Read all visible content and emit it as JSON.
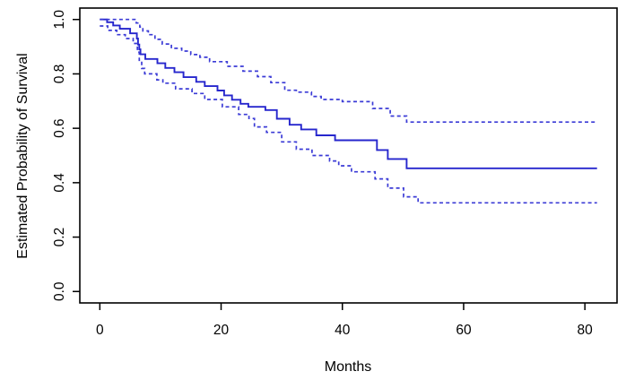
{
  "figure": {
    "background": "#ffffff",
    "axis_color": "#000000",
    "text_color": "#000000"
  },
  "chart_data": {
    "type": "line",
    "subtype": "kaplan-meier-step-function",
    "title": "",
    "xlabel": "Months",
    "ylabel": "Estimated Probability of Survival",
    "xlim": [
      -3.3,
      85.3
    ],
    "ylim": [
      -0.042,
      1.042
    ],
    "x_ticks": {
      "values": [
        0,
        20,
        40,
        60,
        80
      ],
      "labels": [
        "0",
        "20",
        "40",
        "60",
        "80"
      ]
    },
    "y_ticks": {
      "values": [
        0.0,
        0.2,
        0.4,
        0.6,
        0.8,
        1.0
      ],
      "labels": [
        "0.0",
        "0.2",
        "0.4",
        "0.6",
        "0.8",
        "1.0"
      ]
    },
    "grid": false,
    "legend_position": "none",
    "curve_end_x": 82,
    "colors": {
      "solid_line": "#2626cd",
      "dashed_line": "#3b3bd6"
    },
    "series": [
      {
        "name": "KM survival estimate",
        "style": "solid",
        "color": "#2626cd",
        "points": [
          [
            0,
            1.0
          ],
          [
            1.2,
            0.99
          ],
          [
            2.2,
            0.978
          ],
          [
            3.3,
            0.966
          ],
          [
            5.0,
            0.949
          ],
          [
            6.1,
            0.93
          ],
          [
            6.3,
            0.908
          ],
          [
            6.5,
            0.89
          ],
          [
            6.7,
            0.872
          ],
          [
            7.5,
            0.855
          ],
          [
            9.5,
            0.839
          ],
          [
            10.8,
            0.822
          ],
          [
            12.3,
            0.806
          ],
          [
            13.8,
            0.788
          ],
          [
            15.9,
            0.771
          ],
          [
            17.3,
            0.755
          ],
          [
            19.4,
            0.739
          ],
          [
            20.5,
            0.721
          ],
          [
            21.8,
            0.705
          ],
          [
            23.2,
            0.69
          ],
          [
            24.5,
            0.679
          ],
          [
            27.3,
            0.667
          ],
          [
            29.2,
            0.635
          ],
          [
            31.3,
            0.613
          ],
          [
            33.2,
            0.596
          ],
          [
            35.7,
            0.574
          ],
          [
            38.8,
            0.556
          ],
          [
            45.7,
            0.52
          ],
          [
            47.5,
            0.487
          ],
          [
            50.6,
            0.453
          ]
        ]
      },
      {
        "name": "Upper 95% confidence limit",
        "style": "dashed",
        "color": "#3b3bd6",
        "points": [
          [
            0,
            1.0
          ],
          [
            6.0,
            0.987
          ],
          [
            6.6,
            0.972
          ],
          [
            7.1,
            0.958
          ],
          [
            8.0,
            0.944
          ],
          [
            9.1,
            0.927
          ],
          [
            10.3,
            0.91
          ],
          [
            11.8,
            0.894
          ],
          [
            13.5,
            0.884
          ],
          [
            15.0,
            0.871
          ],
          [
            16.5,
            0.861
          ],
          [
            18.1,
            0.845
          ],
          [
            21.0,
            0.828
          ],
          [
            23.6,
            0.81
          ],
          [
            26.0,
            0.79
          ],
          [
            28.2,
            0.768
          ],
          [
            30.5,
            0.74
          ],
          [
            32.4,
            0.733
          ],
          [
            34.9,
            0.717
          ],
          [
            36.5,
            0.706
          ],
          [
            40.0,
            0.698
          ],
          [
            45.0,
            0.673
          ],
          [
            47.9,
            0.645
          ],
          [
            50.6,
            0.623
          ]
        ]
      },
      {
        "name": "Lower 95% confidence limit",
        "style": "dashed",
        "color": "#3b3bd6",
        "points": [
          [
            0,
            0.976
          ],
          [
            1.3,
            0.96
          ],
          [
            2.8,
            0.944
          ],
          [
            4.2,
            0.93
          ],
          [
            5.5,
            0.912
          ],
          [
            6.2,
            0.88
          ],
          [
            6.5,
            0.85
          ],
          [
            6.9,
            0.82
          ],
          [
            7.4,
            0.8
          ],
          [
            9.4,
            0.778
          ],
          [
            10.4,
            0.766
          ],
          [
            12.5,
            0.745
          ],
          [
            15.2,
            0.728
          ],
          [
            17.3,
            0.706
          ],
          [
            20.2,
            0.679
          ],
          [
            22.9,
            0.651
          ],
          [
            24.6,
            0.636
          ],
          [
            25.5,
            0.605
          ],
          [
            27.5,
            0.585
          ],
          [
            30.0,
            0.55
          ],
          [
            32.4,
            0.523
          ],
          [
            35.0,
            0.5
          ],
          [
            37.9,
            0.48
          ],
          [
            39.4,
            0.462
          ],
          [
            41.5,
            0.44
          ],
          [
            45.4,
            0.414
          ],
          [
            47.5,
            0.38
          ],
          [
            50.1,
            0.348
          ],
          [
            52.5,
            0.326
          ]
        ]
      }
    ]
  }
}
